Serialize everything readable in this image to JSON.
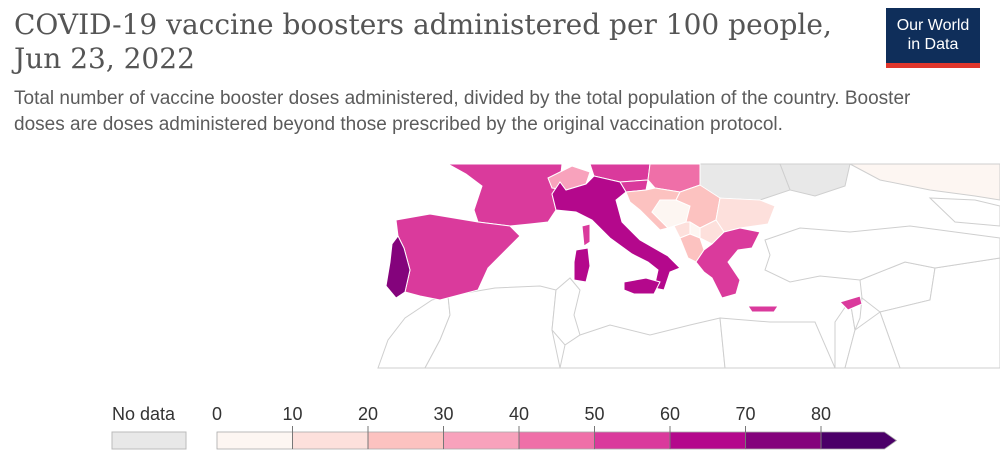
{
  "header": {
    "title": "COVID-19 vaccine boosters administered per 100 people, Jun 23, 2022",
    "subtitle": "Total number of vaccine booster doses administered, divided by the total population of the country. Booster doses are doses administered beyond those prescribed by the original vaccination protocol.",
    "logo_line1": "Our World",
    "logo_line2": "in Data"
  },
  "colors": {
    "no_data": "#e8e8e8",
    "bins": [
      "#fdf6f2",
      "#fde0dc",
      "#fcc2c0",
      "#f8a2bc",
      "#ef6fa8",
      "#da3a9c",
      "#b4088c",
      "#84037c",
      "#4b0068"
    ]
  },
  "legend": {
    "no_data_label": "No data",
    "ticks": [
      "0",
      "10",
      "20",
      "30",
      "40",
      "50",
      "60",
      "70",
      "80"
    ]
  },
  "map_data": {
    "metric": "boosters per 100 people",
    "countries": [
      {
        "name": "Portugal",
        "bin": 7
      },
      {
        "name": "Spain",
        "bin": 5
      },
      {
        "name": "France",
        "bin": 5
      },
      {
        "name": "Italy",
        "bin": 6
      },
      {
        "name": "Switzerland",
        "bin": 3
      },
      {
        "name": "Austria",
        "bin": 5
      },
      {
        "name": "Slovenia",
        "bin": 5
      },
      {
        "name": "Croatia",
        "bin": 2
      },
      {
        "name": "Hungary",
        "bin": 4
      },
      {
        "name": "Bosnia and Herzegovina",
        "bin": 0
      },
      {
        "name": "Serbia",
        "bin": 2
      },
      {
        "name": "Montenegro",
        "bin": 1
      },
      {
        "name": "Kosovo",
        "bin": 0
      },
      {
        "name": "Albania",
        "bin": 2
      },
      {
        "name": "North Macedonia",
        "bin": 1
      },
      {
        "name": "Bulgaria",
        "bin": 1
      },
      {
        "name": "Greece",
        "bin": 5
      },
      {
        "name": "Cyprus",
        "bin": 5
      },
      {
        "name": "Ukraine",
        "bin": null
      },
      {
        "name": "Romania",
        "bin": null
      },
      {
        "name": "Moldova",
        "bin": null
      },
      {
        "name": "Russia",
        "bin": 0
      }
    ]
  }
}
